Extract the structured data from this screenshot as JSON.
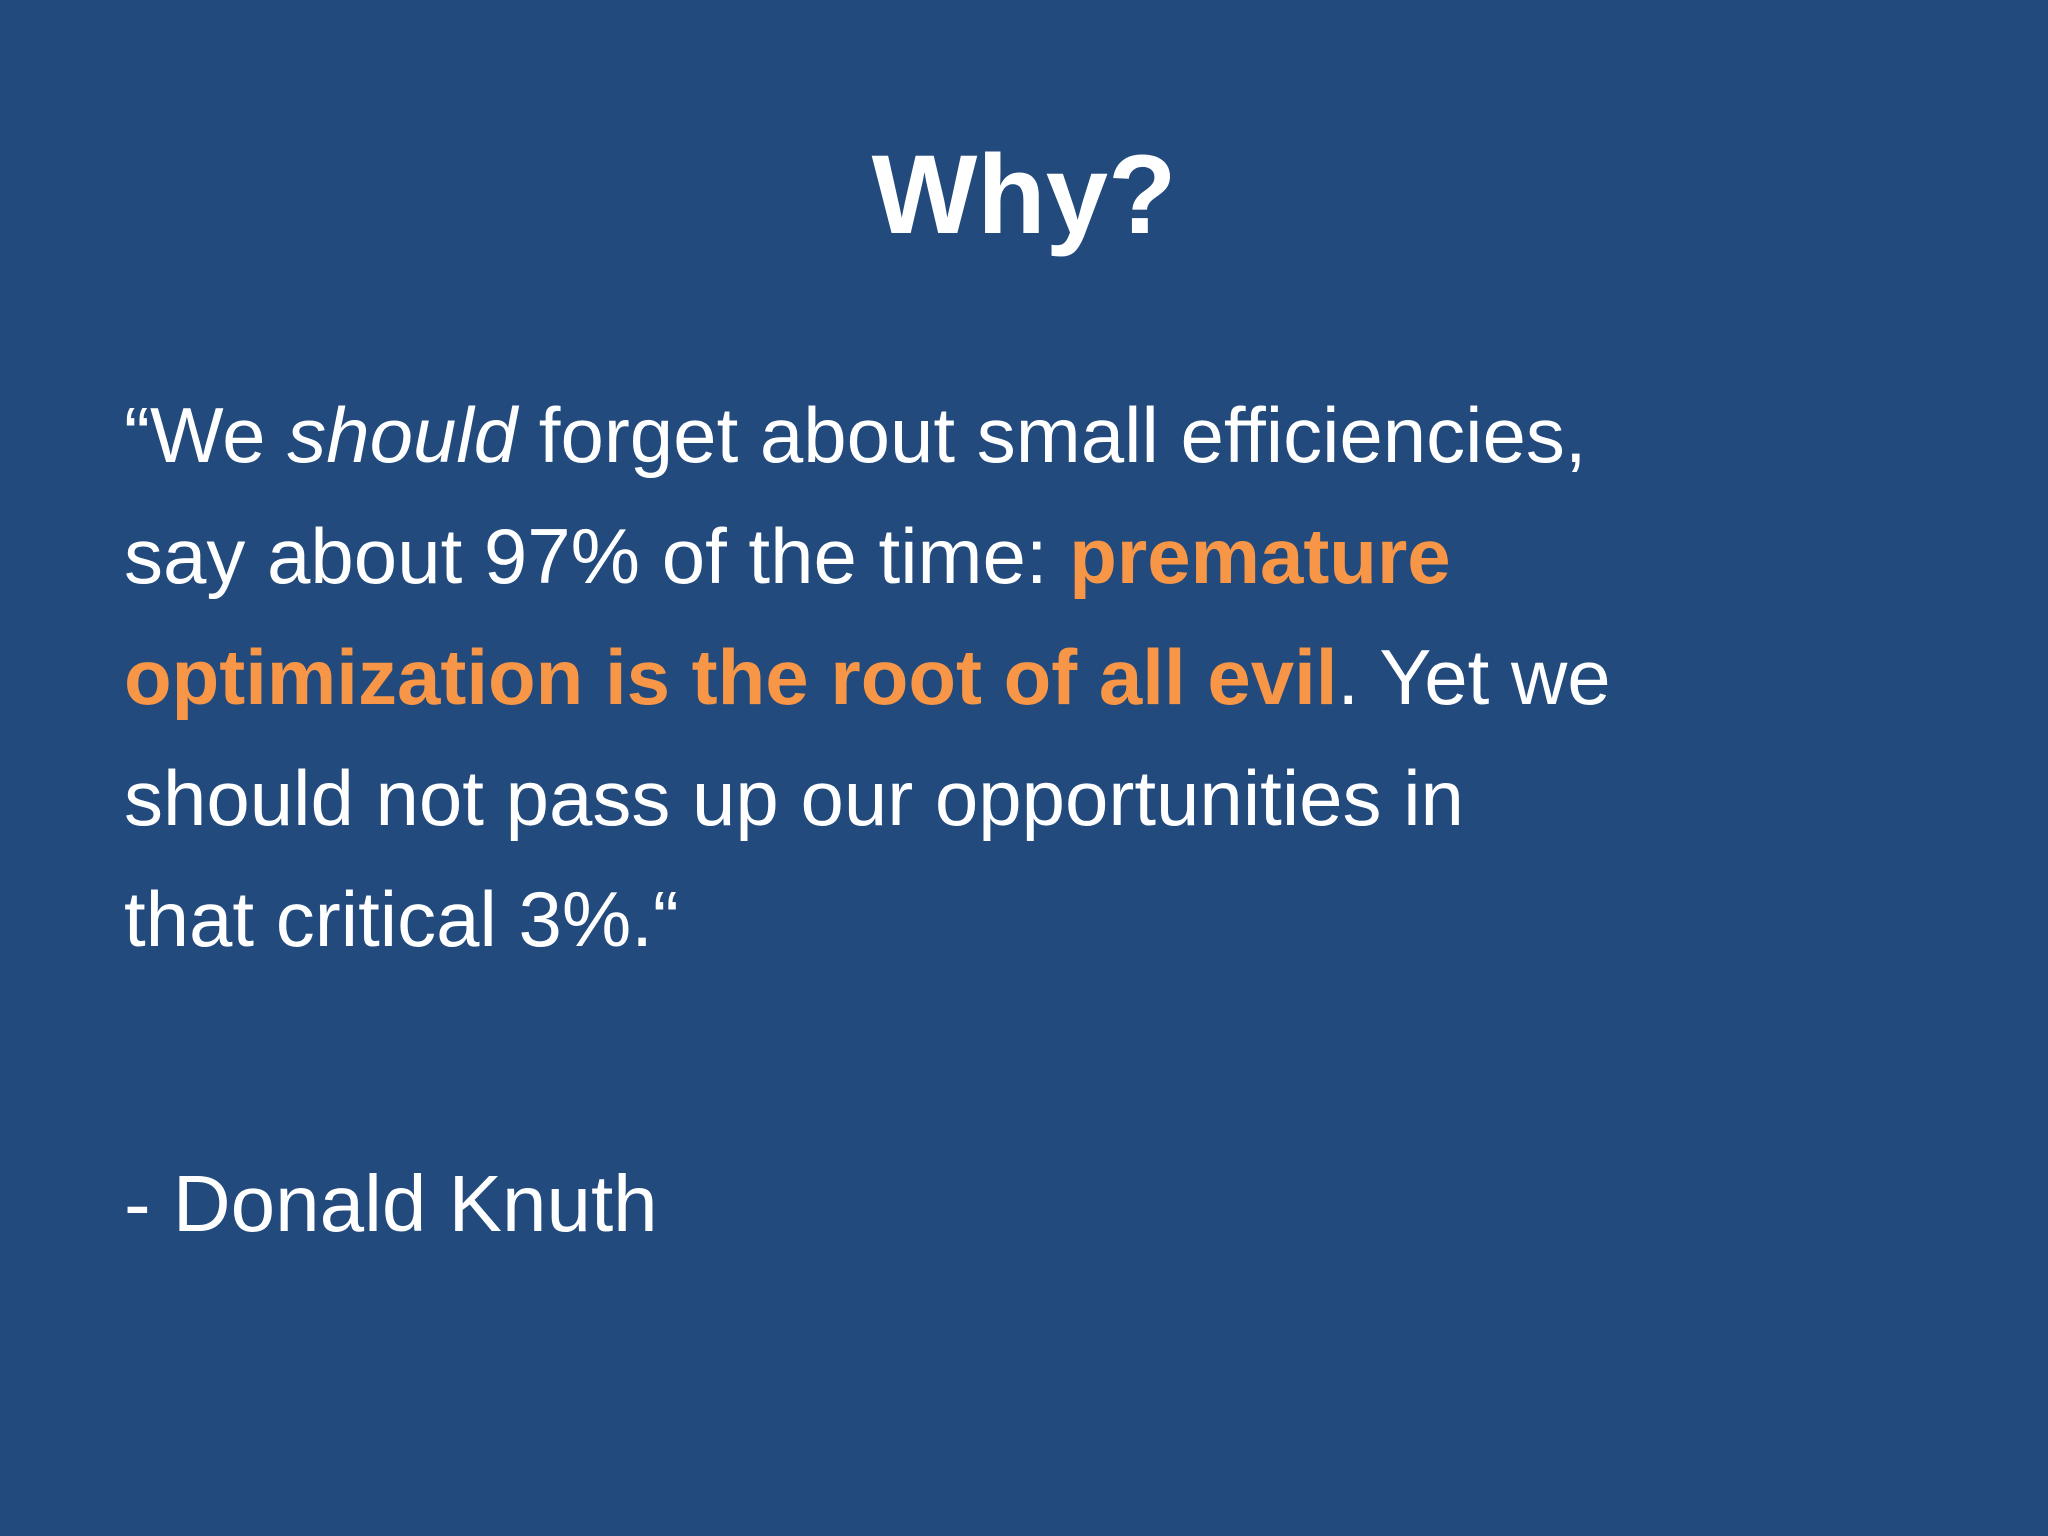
{
  "slide": {
    "background": "#224a7d",
    "title": "Why?",
    "quote": {
      "color": "#ffffff",
      "lines": [
        [
          {
            "text": "“We "
          },
          {
            "text": "should",
            "style": "italic"
          },
          {
            "text": " forget about small efficiencies,"
          }
        ],
        [
          {
            "text": "say about 97% of the time: "
          },
          {
            "text": "premature",
            "style": "bold",
            "color": "#f79646"
          }
        ],
        [
          {
            "text": "optimization is the root of all evil",
            "style": "bold",
            "color": "#f79646"
          },
          {
            "text": ". Yet we"
          }
        ],
        [
          {
            "text": "should not pass up our opportunities in"
          }
        ],
        [
          {
            "text": "that critical 3%.“"
          }
        ]
      ]
    },
    "attribution": "- Donald Knuth"
  }
}
